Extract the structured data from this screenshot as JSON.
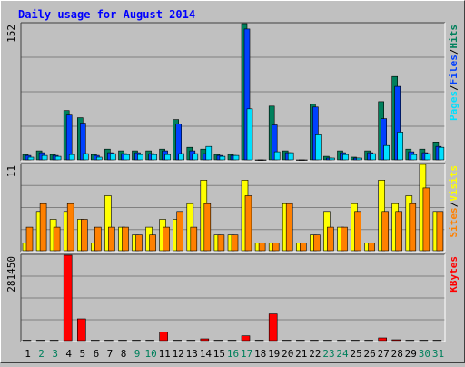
{
  "chart_data": {
    "type": "bar",
    "title": "Daily usage for August 2014",
    "categories": [
      "1",
      "2",
      "3",
      "4",
      "5",
      "6",
      "7",
      "8",
      "9",
      "10",
      "11",
      "12",
      "13",
      "14",
      "15",
      "16",
      "17",
      "18",
      "19",
      "20",
      "21",
      "22",
      "23",
      "24",
      "25",
      "26",
      "27",
      "28",
      "29",
      "30",
      "31"
    ],
    "weekend_days": [
      2,
      3,
      9,
      10,
      16,
      17,
      23,
      24,
      30,
      31
    ],
    "panels": [
      {
        "id": "hits",
        "max_label": "152",
        "ylim": [
          0,
          152
        ],
        "legend": [
          "Pages",
          "Files",
          "Hits"
        ],
        "series": [
          {
            "name": "Hits",
            "color": "#00805c",
            "values": [
              6,
              10,
              6,
              55,
              47,
              6,
              12,
              10,
              10,
              10,
              12,
              45,
              14,
              12,
              6,
              6,
              152,
              0,
              60,
              10,
              0,
              62,
              4,
              10,
              3,
              10,
              65,
              93,
              12,
              12,
              20
            ]
          },
          {
            "name": "Files",
            "color": "#0040ff",
            "values": [
              5,
              8,
              5,
              50,
              41,
              5,
              8,
              7,
              8,
              7,
              10,
              40,
              10,
              7,
              5,
              5,
              146,
              0,
              39,
              8,
              0,
              59,
              2,
              8,
              2,
              8,
              46,
              82,
              9,
              8,
              15
            ]
          },
          {
            "name": "Pages",
            "color": "#00e0ff",
            "values": [
              3,
              5,
              4,
              6,
              7,
              3,
              7,
              6,
              6,
              6,
              6,
              7,
              7,
              15,
              4,
              5,
              57,
              0,
              9,
              8,
              0,
              28,
              2,
              6,
              2,
              7,
              16,
              31,
              6,
              7,
              14
            ]
          }
        ]
      },
      {
        "id": "visits",
        "max_label": "11",
        "ylim": [
          0,
          11
        ],
        "legend": [
          "Sites",
          "Visits"
        ],
        "series": [
          {
            "name": "Visits",
            "color": "#ffff00",
            "values": [
              1,
              5,
              4,
              5,
              4,
              1,
              7,
              3,
              2,
              3,
              4,
              4,
              6,
              9,
              2,
              2,
              9,
              1,
              1,
              6,
              1,
              2,
              5,
              3,
              6,
              1,
              9,
              6,
              7,
              11,
              5
            ]
          },
          {
            "name": "Sites",
            "color": "#ff8000",
            "values": [
              3,
              6,
              3,
              6,
              4,
              3,
              3,
              3,
              2,
              2,
              3,
              5,
              3,
              6,
              2,
              2,
              7,
              1,
              1,
              6,
              1,
              2,
              3,
              3,
              5,
              1,
              5,
              5,
              6,
              8,
              5
            ]
          }
        ]
      },
      {
        "id": "kbytes",
        "max_label": "281450",
        "ylim": [
          0,
          281450
        ],
        "legend": [
          "KBytes"
        ],
        "series": [
          {
            "name": "KBytes",
            "color": "#ff0000",
            "values": [
              1500,
              1500,
              1500,
              281450,
              72000,
              1500,
              1500,
              1500,
              1500,
              1500,
              28000,
              1500,
              1500,
              6000,
              1500,
              1500,
              16000,
              1500,
              88000,
              1500,
              1500,
              1500,
              1500,
              1500,
              1500,
              1500,
              9000,
              3000,
              1500,
              1500,
              1500
            ]
          }
        ]
      }
    ]
  }
}
